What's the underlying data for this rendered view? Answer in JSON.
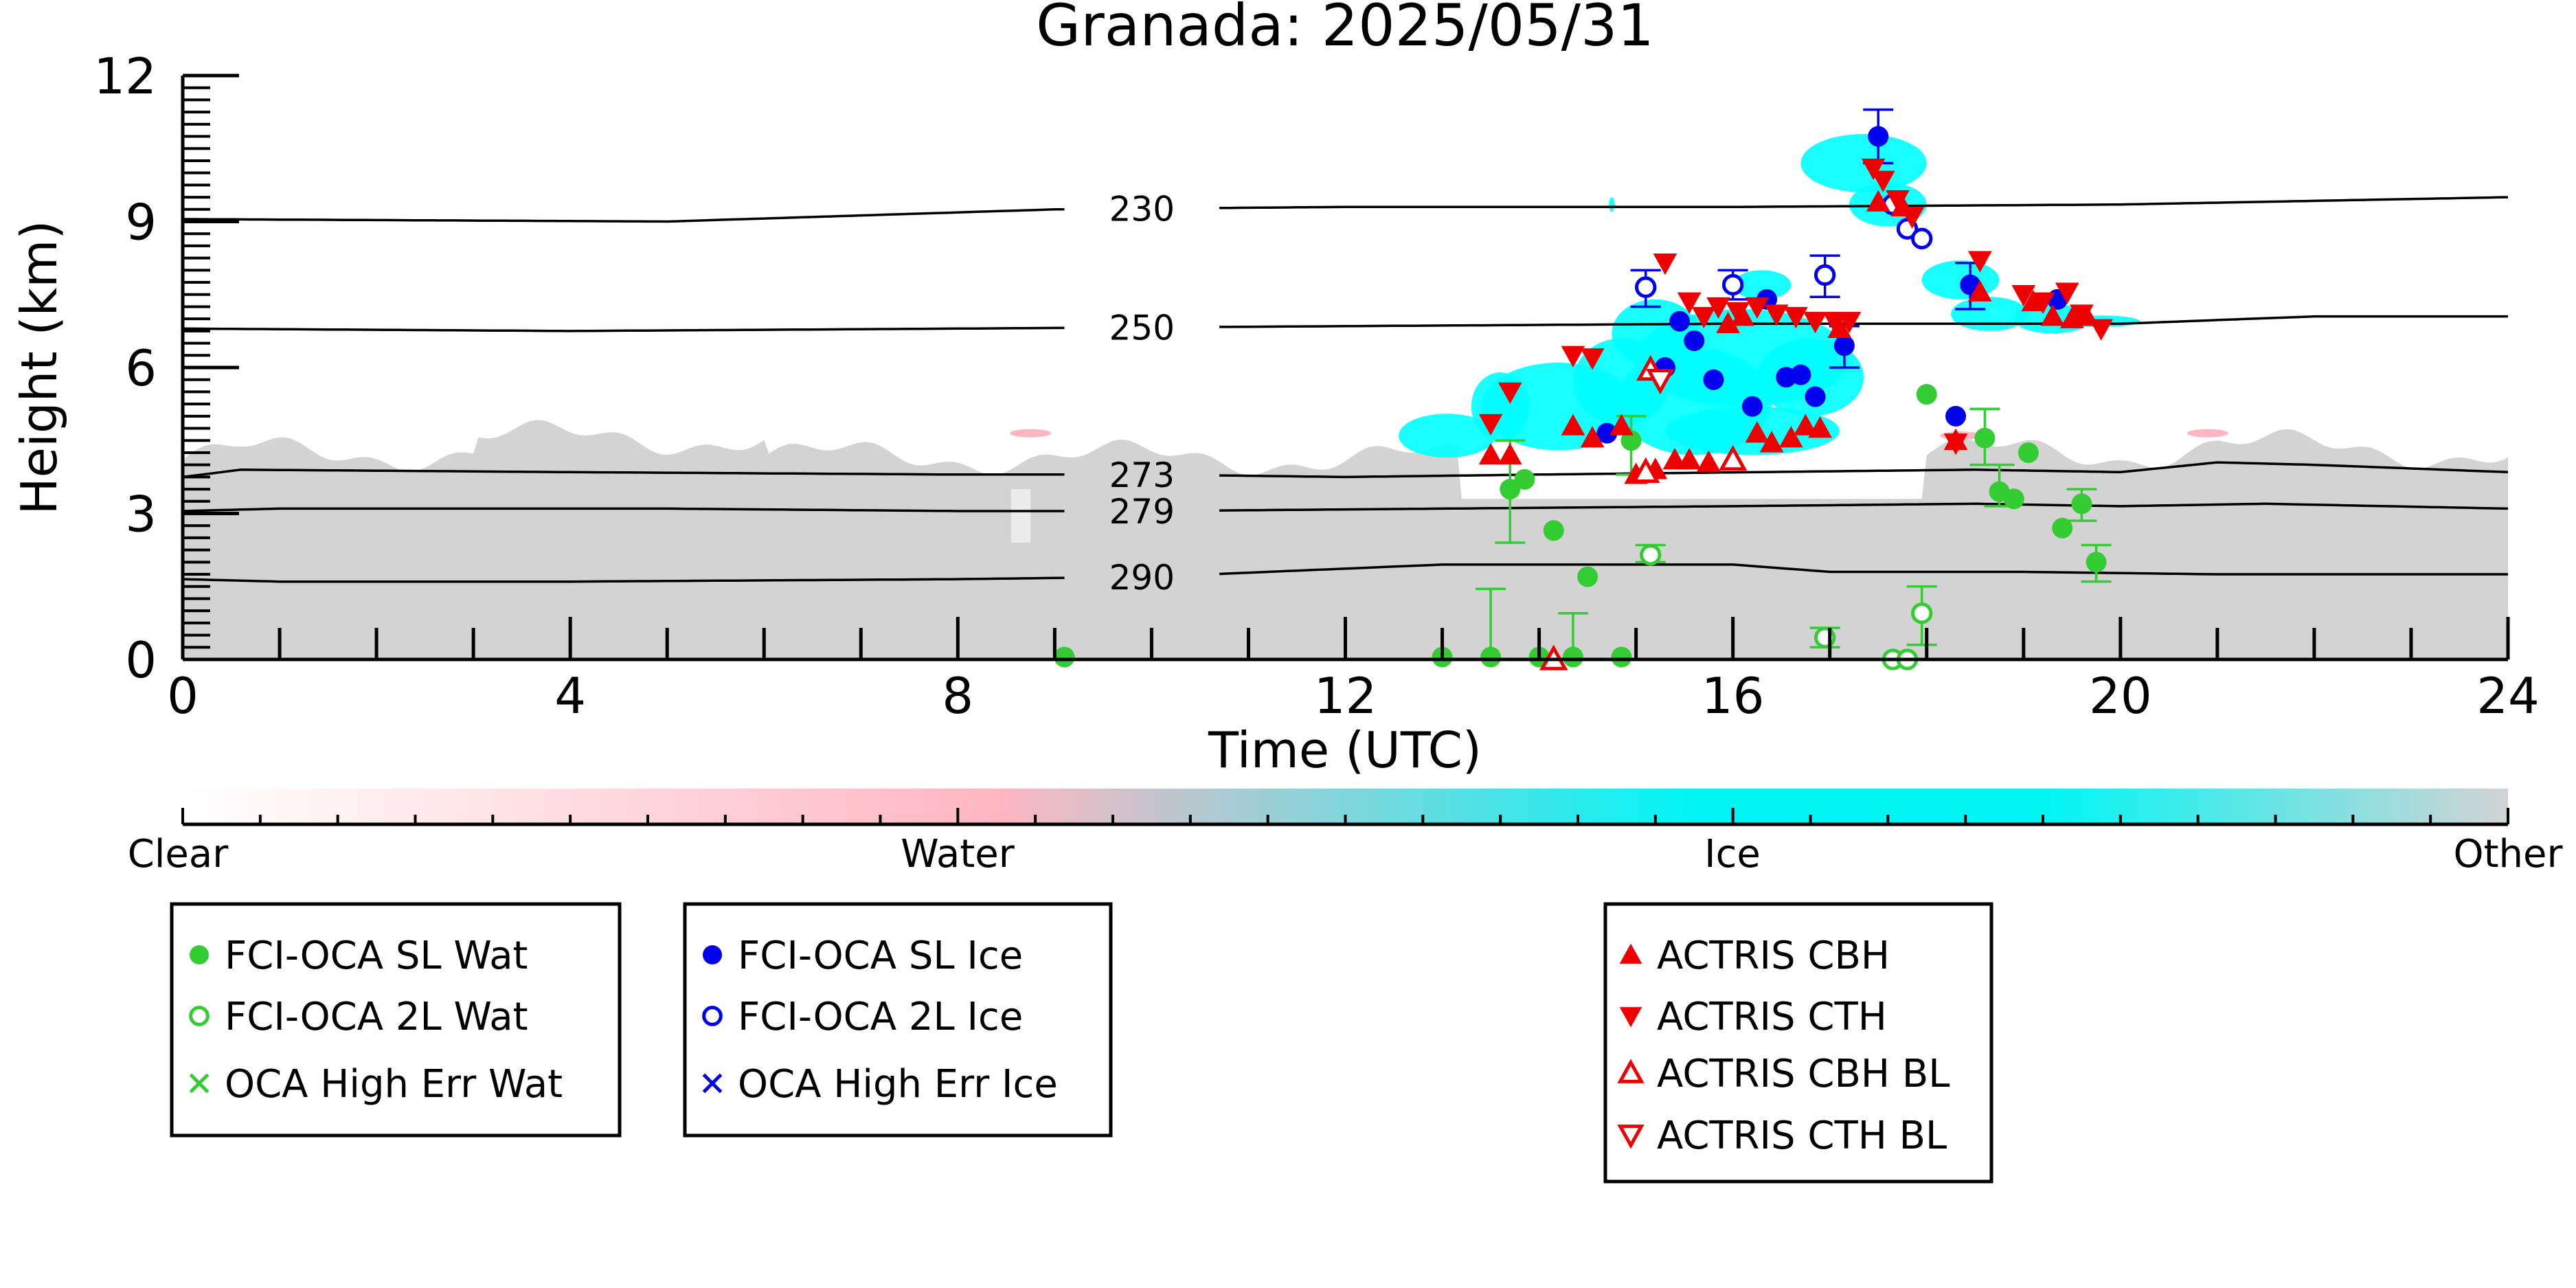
{
  "chart_data": {
    "type": "scatter",
    "title": "Granada: 2025/05/31",
    "xlabel": "Time (UTC)",
    "ylabel": "Height (km)",
    "xlim": [
      0,
      24
    ],
    "ylim": [
      0,
      12
    ],
    "x_ticks": [
      "0",
      "4",
      "8",
      "12",
      "16",
      "20",
      "24"
    ],
    "y_ticks": [
      "0",
      "3",
      "6",
      "9",
      "12"
    ],
    "grid": false,
    "isotherms": [
      {
        "label": "230",
        "x": [
          0,
          5,
          9,
          12,
          16,
          20,
          24
        ],
        "y": [
          9.05,
          9.0,
          9.25,
          9.3,
          9.3,
          9.35,
          9.5
        ]
      },
      {
        "label": "250",
        "x": [
          0,
          4,
          8,
          12,
          16,
          20,
          22,
          24
        ],
        "y": [
          6.8,
          6.75,
          6.8,
          6.85,
          6.9,
          6.9,
          7.05,
          7.05
        ]
      },
      {
        "label": "273",
        "x": [
          0,
          0.6,
          4,
          8,
          10,
          12,
          14,
          18.5,
          20,
          21,
          22,
          24
        ],
        "y": [
          3.75,
          3.9,
          3.85,
          3.8,
          3.8,
          3.75,
          3.8,
          3.9,
          3.85,
          4.05,
          4.0,
          3.85
        ]
      },
      {
        "label": "279",
        "x": [
          0,
          1,
          5,
          8,
          10,
          13,
          16,
          18.5,
          20,
          21.5,
          24
        ],
        "y": [
          3.05,
          3.1,
          3.1,
          3.05,
          3.05,
          3.1,
          3.15,
          3.2,
          3.15,
          3.2,
          3.1
        ]
      },
      {
        "label": "290",
        "x": [
          0,
          1,
          4,
          8,
          10,
          13,
          14.5,
          16,
          17,
          19,
          21,
          24
        ],
        "y": [
          1.65,
          1.6,
          1.6,
          1.65,
          1.7,
          1.95,
          1.95,
          1.95,
          1.8,
          1.8,
          1.75,
          1.75
        ]
      }
    ],
    "isotherm_label_x": 9.9,
    "series": [
      {
        "name": "FCI-OCA SL Wat",
        "marker": "filled-circle",
        "color": "#33cc33",
        "points": [
          {
            "x": 9.1,
            "y": 0.05
          },
          {
            "x": 13.0,
            "y": 0.05
          },
          {
            "x": 13.5,
            "y": 0.05,
            "err": [
              0,
              1.45
            ]
          },
          {
            "x": 13.7,
            "y": 3.5,
            "err": [
              2.4,
              4.5
            ]
          },
          {
            "x": 13.85,
            "y": 3.7
          },
          {
            "x": 14.0,
            "y": 0.05
          },
          {
            "x": 14.15,
            "y": 2.65
          },
          {
            "x": 14.35,
            "y": 0.05,
            "err": [
              0,
              0.95
            ]
          },
          {
            "x": 14.5,
            "y": 1.7
          },
          {
            "x": 14.85,
            "y": 0.05
          },
          {
            "x": 14.95,
            "y": 4.5,
            "err": [
              3.8,
              5.0
            ]
          },
          {
            "x": 18.0,
            "y": 5.45
          },
          {
            "x": 18.6,
            "y": 4.55,
            "err": [
              4.0,
              5.15
            ]
          },
          {
            "x": 18.75,
            "y": 3.45,
            "err": [
              3.15,
              4.0
            ]
          },
          {
            "x": 18.9,
            "y": 3.3
          },
          {
            "x": 19.05,
            "y": 4.25
          },
          {
            "x": 19.4,
            "y": 2.7
          },
          {
            "x": 19.6,
            "y": 3.2,
            "err": [
              2.85,
              3.5
            ]
          },
          {
            "x": 19.75,
            "y": 2.0,
            "err": [
              1.6,
              2.35
            ]
          }
        ]
      },
      {
        "name": "FCI-OCA 2L Wat",
        "marker": "open-circle",
        "color": "#33cc33",
        "points": [
          {
            "x": 15.15,
            "y": 2.15,
            "err": [
              2.0,
              2.35
            ]
          },
          {
            "x": 16.95,
            "y": 0.45,
            "err": [
              0.25,
              0.65
            ]
          },
          {
            "x": 17.65,
            "y": 0.0
          },
          {
            "x": 17.8,
            "y": 0.0
          },
          {
            "x": 17.95,
            "y": 0.95,
            "err": [
              0.3,
              1.5
            ]
          }
        ]
      },
      {
        "name": "OCA High Err Wat",
        "marker": "x",
        "color": "#33cc33",
        "points": []
      },
      {
        "name": "FCI-OCA SL Ice",
        "marker": "filled-circle",
        "color": "#0000ee",
        "points": [
          {
            "x": 14.7,
            "y": 4.65
          },
          {
            "x": 15.3,
            "y": 6.0
          },
          {
            "x": 15.45,
            "y": 6.95
          },
          {
            "x": 15.6,
            "y": 6.55
          },
          {
            "x": 15.8,
            "y": 5.75
          },
          {
            "x": 16.2,
            "y": 5.2
          },
          {
            "x": 16.35,
            "y": 7.4
          },
          {
            "x": 16.55,
            "y": 5.8
          },
          {
            "x": 16.7,
            "y": 5.85
          },
          {
            "x": 16.85,
            "y": 5.4
          },
          {
            "x": 17.15,
            "y": 6.45,
            "err": [
              6.0,
              6.85
            ]
          },
          {
            "x": 17.5,
            "y": 10.75,
            "err": [
              10.2,
              11.3
            ]
          },
          {
            "x": 18.3,
            "y": 5.0
          },
          {
            "x": 18.45,
            "y": 7.7,
            "err": [
              7.2,
              8.15
            ]
          },
          {
            "x": 19.35,
            "y": 7.4
          }
        ]
      },
      {
        "name": "FCI-OCA 2L Ice",
        "marker": "open-circle",
        "color": "#0000ee",
        "points": [
          {
            "x": 15.1,
            "y": 7.65,
            "err": [
              7.25,
              8.0
            ]
          },
          {
            "x": 16.0,
            "y": 7.7,
            "err": [
              7.4,
              8.0
            ]
          },
          {
            "x": 16.95,
            "y": 7.9,
            "err": [
              7.45,
              8.3
            ]
          },
          {
            "x": 17.65,
            "y": 9.35
          },
          {
            "x": 17.8,
            "y": 8.85
          },
          {
            "x": 17.95,
            "y": 8.65
          }
        ]
      },
      {
        "name": "OCA High Err Ice",
        "marker": "x",
        "color": "#0000ee",
        "points": []
      },
      {
        "name": "ACTRIS CBH",
        "marker": "triangle-up",
        "color": "#ee0000",
        "points": [
          {
            "x": 13.5,
            "y": 4.2
          },
          {
            "x": 13.7,
            "y": 4.2
          },
          {
            "x": 14.35,
            "y": 4.8
          },
          {
            "x": 14.55,
            "y": 4.55
          },
          {
            "x": 14.85,
            "y": 4.8
          },
          {
            "x": 15.0,
            "y": 3.8
          },
          {
            "x": 15.2,
            "y": 3.9
          },
          {
            "x": 15.4,
            "y": 4.1
          },
          {
            "x": 15.55,
            "y": 4.1
          },
          {
            "x": 15.75,
            "y": 4.05
          },
          {
            "x": 15.95,
            "y": 6.9
          },
          {
            "x": 16.1,
            "y": 7.05
          },
          {
            "x": 16.25,
            "y": 4.65
          },
          {
            "x": 16.4,
            "y": 4.45
          },
          {
            "x": 16.6,
            "y": 4.55
          },
          {
            "x": 16.75,
            "y": 4.8
          },
          {
            "x": 16.9,
            "y": 4.75
          },
          {
            "x": 17.1,
            "y": 6.8
          },
          {
            "x": 17.5,
            "y": 9.4
          },
          {
            "x": 17.75,
            "y": 9.3
          },
          {
            "x": 18.3,
            "y": 4.5
          },
          {
            "x": 18.55,
            "y": 7.55
          },
          {
            "x": 19.1,
            "y": 7.35
          },
          {
            "x": 19.3,
            "y": 7.05
          },
          {
            "x": 19.5,
            "y": 7.0
          },
          {
            "x": 19.65,
            "y": 7.05
          }
        ]
      },
      {
        "name": "ACTRIS CTH",
        "marker": "triangle-down",
        "color": "#ee0000",
        "points": [
          {
            "x": 13.5,
            "y": 4.85
          },
          {
            "x": 13.7,
            "y": 5.5
          },
          {
            "x": 14.35,
            "y": 6.25
          },
          {
            "x": 14.55,
            "y": 6.2
          },
          {
            "x": 15.3,
            "y": 8.15
          },
          {
            "x": 15.55,
            "y": 7.35
          },
          {
            "x": 15.7,
            "y": 7.05
          },
          {
            "x": 15.85,
            "y": 7.25
          },
          {
            "x": 16.05,
            "y": 7.15
          },
          {
            "x": 16.25,
            "y": 7.25
          },
          {
            "x": 16.45,
            "y": 7.1
          },
          {
            "x": 16.65,
            "y": 7.05
          },
          {
            "x": 16.85,
            "y": 6.95
          },
          {
            "x": 17.05,
            "y": 6.95
          },
          {
            "x": 17.2,
            "y": 6.95
          },
          {
            "x": 17.45,
            "y": 10.1
          },
          {
            "x": 17.55,
            "y": 9.85
          },
          {
            "x": 17.7,
            "y": 9.45
          },
          {
            "x": 17.85,
            "y": 9.1
          },
          {
            "x": 18.3,
            "y": 4.45
          },
          {
            "x": 18.55,
            "y": 8.2
          },
          {
            "x": 19.0,
            "y": 7.5
          },
          {
            "x": 19.2,
            "y": 7.35
          },
          {
            "x": 19.45,
            "y": 7.55
          },
          {
            "x": 19.6,
            "y": 7.1
          },
          {
            "x": 19.8,
            "y": 6.8
          }
        ]
      },
      {
        "name": "ACTRIS CBH BL",
        "marker": "open-triangle-up",
        "color": "#ee0000",
        "points": [
          {
            "x": 14.15,
            "y": 0.0
          },
          {
            "x": 15.1,
            "y": 3.85
          },
          {
            "x": 15.15,
            "y": 5.95
          },
          {
            "x": 16.0,
            "y": 4.1
          }
        ]
      },
      {
        "name": "ACTRIS CTH BL",
        "marker": "open-triangle-down",
        "color": "#ee0000",
        "points": [
          {
            "x": 15.25,
            "y": 5.75
          }
        ]
      }
    ],
    "cloud_mask_colorbar": {
      "labels": [
        "Clear",
        "Water",
        "Ice",
        "Other"
      ],
      "colors": [
        "#ffffff",
        "#ffb6c1",
        "#00ffff",
        "#d3d3d3"
      ]
    },
    "colors": {
      "background_other": "#d3d3d3",
      "water": "#ffb6c1",
      "ice": "#00ffff",
      "green": "#33cc33",
      "blue": "#0000ee",
      "red": "#ee0000"
    },
    "legend_groups": [
      {
        "items": [
          "FCI-OCA SL Wat",
          "FCI-OCA 2L Wat",
          "OCA High Err Wat"
        ]
      },
      {
        "items": [
          "FCI-OCA SL Ice",
          "FCI-OCA 2L Ice",
          "OCA High Err Ice"
        ]
      },
      {
        "items": [
          "ACTRIS CBH",
          "ACTRIS CTH",
          "ACTRIS CBH BL",
          "ACTRIS CTH BL"
        ]
      }
    ]
  }
}
